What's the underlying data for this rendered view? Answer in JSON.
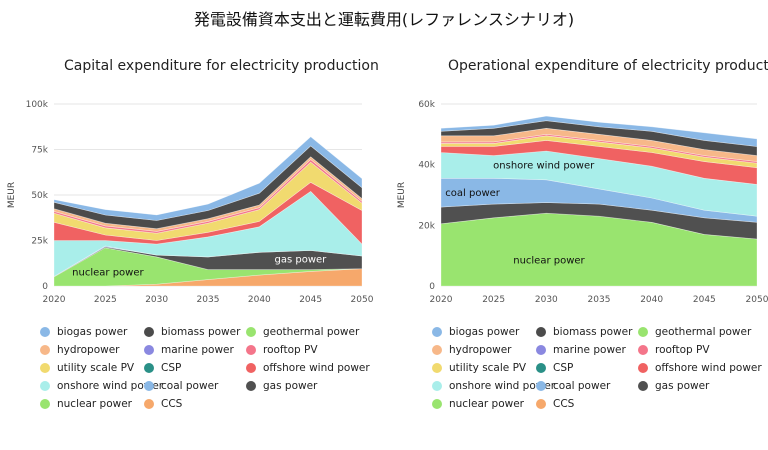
{
  "page_title": "発電設備資本支出と運転費用(レファレンスシナリオ)",
  "chart_data": [
    {
      "type": "area",
      "stacked": true,
      "title": "Capital expenditure for electricity production",
      "ylabel": "MEUR",
      "x": [
        2020,
        2025,
        2030,
        2035,
        2040,
        2045,
        2050
      ],
      "ylim": [
        0,
        100000
      ],
      "yticks": [
        0,
        25000,
        50000,
        75000,
        100000
      ],
      "ytick_labels": [
        "0",
        "25k",
        "50k",
        "75k",
        "100k"
      ],
      "grid": true,
      "series": [
        {
          "name": "CCS",
          "color": "#f6a86b",
          "values": [
            0,
            0,
            1000,
            3500,
            6000,
            8000,
            9500
          ]
        },
        {
          "name": "nuclear power",
          "color": "#99e46f",
          "values": [
            5000,
            21000,
            15000,
            5500,
            3000,
            1000,
            0
          ]
        },
        {
          "name": "gas power",
          "color": "#505050",
          "values": [
            200,
            500,
            1000,
            7000,
            9500,
            10500,
            7000
          ]
        },
        {
          "name": "coal power",
          "color": "#8ab8e6",
          "values": [
            0,
            500,
            0,
            0,
            0,
            0,
            0
          ]
        },
        {
          "name": "onshore wind power",
          "color": "#a9eeea",
          "values": [
            19800,
            3000,
            6000,
            11000,
            14000,
            32500,
            6500
          ]
        },
        {
          "name": "offshore wind power",
          "color": "#f06262",
          "values": [
            10000,
            3000,
            2000,
            2500,
            3000,
            5000,
            18500
          ]
        },
        {
          "name": "CSP",
          "color": "#2a9087",
          "values": [
            0,
            0,
            0,
            0,
            0,
            0,
            0
          ]
        },
        {
          "name": "utility scale PV",
          "color": "#f1da6f",
          "values": [
            5000,
            4000,
            4000,
            5000,
            6500,
            11000,
            4000
          ]
        },
        {
          "name": "rooftop PV",
          "color": "#f4758a",
          "values": [
            1000,
            1000,
            1000,
            1000,
            1000,
            1500,
            1000
          ]
        },
        {
          "name": "marine power",
          "color": "#8a88e0",
          "values": [
            0,
            0,
            0,
            0,
            0,
            0,
            0
          ]
        },
        {
          "name": "hydropower",
          "color": "#f7b889",
          "values": [
            1500,
            1500,
            1500,
            1500,
            1500,
            1500,
            1500
          ]
        },
        {
          "name": "geothermal power",
          "color": "#99e46f",
          "values": [
            0,
            0,
            0,
            0,
            0,
            0,
            0
          ]
        },
        {
          "name": "biomass power",
          "color": "#4b4b4b",
          "values": [
            3500,
            4500,
            4500,
            4500,
            6500,
            6000,
            6000
          ]
        },
        {
          "name": "biogas power",
          "color": "#8ab8e6",
          "values": [
            1500,
            3000,
            3000,
            3500,
            5500,
            5000,
            5000
          ]
        }
      ],
      "area_labels": [
        "nuclear power",
        "gas power"
      ]
    },
    {
      "type": "area",
      "stacked": true,
      "title": "Operational expenditure of electricity production",
      "ylabel": "MEUR",
      "x": [
        2020,
        2025,
        2030,
        2035,
        2040,
        2045,
        2050
      ],
      "ylim": [
        0,
        60000
      ],
      "yticks": [
        0,
        20000,
        40000,
        60000
      ],
      "ytick_labels": [
        "0",
        "20k",
        "40k",
        "60k"
      ],
      "grid": true,
      "series": [
        {
          "name": "CCS",
          "color": "#f6a86b",
          "values": [
            0,
            0,
            0,
            0,
            0,
            0,
            0
          ]
        },
        {
          "name": "nuclear power",
          "color": "#99e46f",
          "values": [
            20500,
            22500,
            24000,
            23000,
            21000,
            17000,
            15500
          ]
        },
        {
          "name": "gas power",
          "color": "#505050",
          "values": [
            5500,
            4500,
            3500,
            4000,
            4000,
            5500,
            5500
          ]
        },
        {
          "name": "coal power",
          "color": "#8ab8e6",
          "values": [
            9500,
            8500,
            7500,
            5000,
            4000,
            2500,
            2000
          ]
        },
        {
          "name": "onshore wind power",
          "color": "#a9eeea",
          "values": [
            8500,
            7500,
            9500,
            10000,
            10500,
            10500,
            10500
          ]
        },
        {
          "name": "offshore wind power",
          "color": "#f06262",
          "values": [
            2000,
            3000,
            3500,
            4000,
            4500,
            5500,
            5500
          ]
        },
        {
          "name": "CSP",
          "color": "#2a9087",
          "values": [
            0,
            0,
            0,
            0,
            0,
            0,
            0
          ]
        },
        {
          "name": "utility scale PV",
          "color": "#f1da6f",
          "values": [
            1000,
            1000,
            1500,
            1500,
            1500,
            1500,
            1500
          ]
        },
        {
          "name": "rooftop PV",
          "color": "#f4758a",
          "values": [
            500,
            500,
            500,
            500,
            500,
            500,
            500
          ]
        },
        {
          "name": "marine power",
          "color": "#8a88e0",
          "values": [
            0,
            0,
            0,
            0,
            0,
            0,
            0
          ]
        },
        {
          "name": "hydropower",
          "color": "#f7b889",
          "values": [
            2000,
            2000,
            2000,
            2000,
            2000,
            2000,
            2000
          ]
        },
        {
          "name": "geothermal power",
          "color": "#99e46f",
          "values": [
            0,
            0,
            0,
            0,
            0,
            0,
            0
          ]
        },
        {
          "name": "biomass power",
          "color": "#4b4b4b",
          "values": [
            1500,
            2500,
            2500,
            2500,
            3000,
            3000,
            3000
          ]
        },
        {
          "name": "biogas power",
          "color": "#8ab8e6",
          "values": [
            1000,
            1000,
            1500,
            1500,
            1500,
            2500,
            2500
          ]
        }
      ],
      "area_labels": [
        "onshore wind power",
        "coal power",
        "nuclear power"
      ]
    }
  ],
  "legend": {
    "columns": [
      [
        "biogas power",
        "hydropower",
        "utility scale PV",
        "onshore wind power",
        "nuclear power"
      ],
      [
        "biomass power",
        "marine power",
        "CSP",
        "coal power",
        "CCS"
      ],
      [
        "geothermal power",
        "rooftop PV",
        "offshore wind power",
        "gas power"
      ]
    ],
    "colors": {
      "biogas power": "#8ab8e6",
      "biomass power": "#4b4b4b",
      "geothermal power": "#99e46f",
      "hydropower": "#f7b889",
      "marine power": "#8a88e0",
      "rooftop PV": "#f4758a",
      "utility scale PV": "#f1da6f",
      "CSP": "#2a9087",
      "offshore wind power": "#f06262",
      "onshore wind power": "#a9eeea",
      "coal power": "#8ab8e6",
      "gas power": "#505050",
      "nuclear power": "#99e46f",
      "CCS": "#f6a86b"
    }
  }
}
